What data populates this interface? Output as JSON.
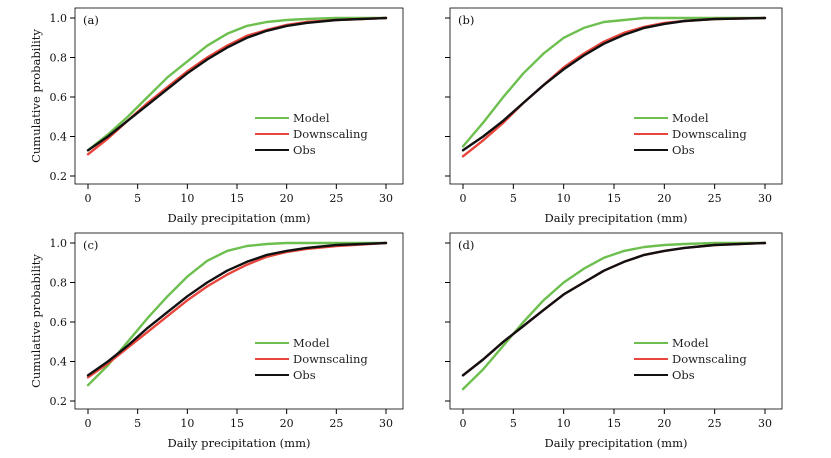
{
  "chart_data": [
    {
      "type": "line",
      "panel_label": "(a)",
      "xlabel": "Daily precipitation (mm)",
      "ylabel": "Cumulative probability",
      "xlim": [
        0,
        30
      ],
      "ylim": [
        0.2,
        1.0
      ],
      "xticks": [
        "0",
        "5",
        "10",
        "15",
        "20",
        "25",
        "30"
      ],
      "yticks": [
        "1.0",
        "0.8",
        "0.6",
        "0.4",
        "0.2"
      ],
      "legend_position": "bottom-right",
      "series": [
        {
          "name": "Model",
          "color": "#6dbf4f",
          "x": [
            0,
            2,
            4,
            6,
            8,
            10,
            12,
            14,
            16,
            18,
            20,
            22,
            25,
            30
          ],
          "y": [
            0.33,
            0.41,
            0.5,
            0.6,
            0.7,
            0.78,
            0.86,
            0.92,
            0.96,
            0.98,
            0.99,
            0.995,
            1.0,
            1.0
          ]
        },
        {
          "name": "Downscaling",
          "color": "#e8453c",
          "x": [
            0,
            2,
            4,
            6,
            8,
            10,
            12,
            14,
            16,
            18,
            20,
            22,
            25,
            30
          ],
          "y": [
            0.31,
            0.39,
            0.48,
            0.57,
            0.65,
            0.73,
            0.8,
            0.86,
            0.91,
            0.94,
            0.965,
            0.98,
            0.99,
            1.0
          ]
        },
        {
          "name": "Obs",
          "color": "#111111",
          "x": [
            0,
            2,
            4,
            6,
            8,
            10,
            12,
            14,
            16,
            18,
            20,
            22,
            25,
            30
          ],
          "y": [
            0.33,
            0.4,
            0.48,
            0.56,
            0.64,
            0.72,
            0.79,
            0.85,
            0.9,
            0.935,
            0.96,
            0.975,
            0.99,
            1.0
          ]
        }
      ]
    },
    {
      "type": "line",
      "panel_label": "(b)",
      "xlabel": "Daily precipitation (mm)",
      "ylabel": "",
      "xlim": [
        0,
        30
      ],
      "ylim": [
        0.2,
        1.0
      ],
      "xticks": [
        "0",
        "5",
        "10",
        "15",
        "20",
        "25",
        "30"
      ],
      "yticks": [],
      "legend_position": "bottom-right",
      "series": [
        {
          "name": "Model",
          "color": "#6dbf4f",
          "x": [
            0,
            2,
            4,
            6,
            8,
            10,
            12,
            14,
            16,
            18,
            20,
            22,
            25,
            30
          ],
          "y": [
            0.35,
            0.47,
            0.6,
            0.72,
            0.82,
            0.9,
            0.95,
            0.98,
            0.99,
            1.0,
            1.0,
            1.0,
            1.0,
            1.0
          ]
        },
        {
          "name": "Downscaling",
          "color": "#e8453c",
          "x": [
            0,
            2,
            4,
            6,
            8,
            10,
            12,
            14,
            16,
            18,
            20,
            22,
            25,
            30
          ],
          "y": [
            0.3,
            0.38,
            0.47,
            0.57,
            0.66,
            0.75,
            0.82,
            0.88,
            0.925,
            0.955,
            0.975,
            0.985,
            0.995,
            1.0
          ]
        },
        {
          "name": "Obs",
          "color": "#111111",
          "x": [
            0,
            2,
            4,
            6,
            8,
            10,
            12,
            14,
            16,
            18,
            20,
            22,
            25,
            30
          ],
          "y": [
            0.33,
            0.4,
            0.48,
            0.57,
            0.66,
            0.74,
            0.81,
            0.87,
            0.915,
            0.95,
            0.97,
            0.985,
            0.995,
            1.0
          ]
        }
      ]
    },
    {
      "type": "line",
      "panel_label": "(c)",
      "xlabel": "Daily precipitation (mm)",
      "ylabel": "Cumulative probability",
      "xlim": [
        0,
        30
      ],
      "ylim": [
        0.2,
        1.0
      ],
      "xticks": [
        "0",
        "5",
        "10",
        "15",
        "20",
        "25",
        "30"
      ],
      "yticks": [
        "1.0",
        "0.8",
        "0.6",
        "0.4",
        "0.2"
      ],
      "legend_position": "bottom-right",
      "series": [
        {
          "name": "Model",
          "color": "#6dbf4f",
          "x": [
            0,
            2,
            4,
            6,
            8,
            10,
            12,
            14,
            16,
            18,
            20,
            22,
            25,
            30
          ],
          "y": [
            0.28,
            0.38,
            0.5,
            0.62,
            0.73,
            0.83,
            0.91,
            0.96,
            0.985,
            0.995,
            1.0,
            1.0,
            1.0,
            1.0
          ]
        },
        {
          "name": "Downscaling",
          "color": "#e8453c",
          "x": [
            0,
            2,
            4,
            6,
            8,
            10,
            12,
            14,
            16,
            18,
            20,
            22,
            25,
            30
          ],
          "y": [
            0.32,
            0.39,
            0.47,
            0.55,
            0.63,
            0.71,
            0.78,
            0.84,
            0.89,
            0.93,
            0.955,
            0.97,
            0.985,
            1.0
          ]
        },
        {
          "name": "Obs",
          "color": "#111111",
          "x": [
            0,
            2,
            4,
            6,
            8,
            10,
            12,
            14,
            16,
            18,
            20,
            22,
            25,
            30
          ],
          "y": [
            0.33,
            0.4,
            0.48,
            0.57,
            0.65,
            0.73,
            0.8,
            0.86,
            0.905,
            0.94,
            0.96,
            0.975,
            0.99,
            1.0
          ]
        }
      ]
    },
    {
      "type": "line",
      "panel_label": "(d)",
      "xlabel": "Daily precipitation (mm)",
      "ylabel": "",
      "xlim": [
        0,
        30
      ],
      "ylim": [
        0.2,
        1.0
      ],
      "xticks": [
        "0",
        "5",
        "10",
        "15",
        "20",
        "25",
        "30"
      ],
      "yticks": [],
      "legend_position": "bottom-right",
      "series": [
        {
          "name": "Model",
          "color": "#6dbf4f",
          "x": [
            0,
            2,
            4,
            6,
            8,
            10,
            12,
            14,
            16,
            18,
            20,
            22,
            25,
            30
          ],
          "y": [
            0.26,
            0.36,
            0.48,
            0.6,
            0.71,
            0.8,
            0.87,
            0.925,
            0.96,
            0.98,
            0.99,
            0.995,
            1.0,
            1.0
          ]
        },
        {
          "name": "Downscaling",
          "color": "#e8453c",
          "x": [
            0,
            2,
            4,
            6,
            8,
            10,
            12,
            14,
            16,
            18,
            20,
            22,
            25,
            30
          ],
          "y": [
            0.33,
            0.41,
            0.5,
            0.58,
            0.66,
            0.74,
            0.8,
            0.86,
            0.905,
            0.94,
            0.96,
            0.975,
            0.99,
            1.0
          ]
        },
        {
          "name": "Obs",
          "color": "#111111",
          "x": [
            0,
            2,
            4,
            6,
            8,
            10,
            12,
            14,
            16,
            18,
            20,
            22,
            25,
            30
          ],
          "y": [
            0.33,
            0.41,
            0.5,
            0.58,
            0.66,
            0.74,
            0.8,
            0.86,
            0.905,
            0.94,
            0.96,
            0.975,
            0.99,
            1.0
          ]
        }
      ]
    }
  ]
}
